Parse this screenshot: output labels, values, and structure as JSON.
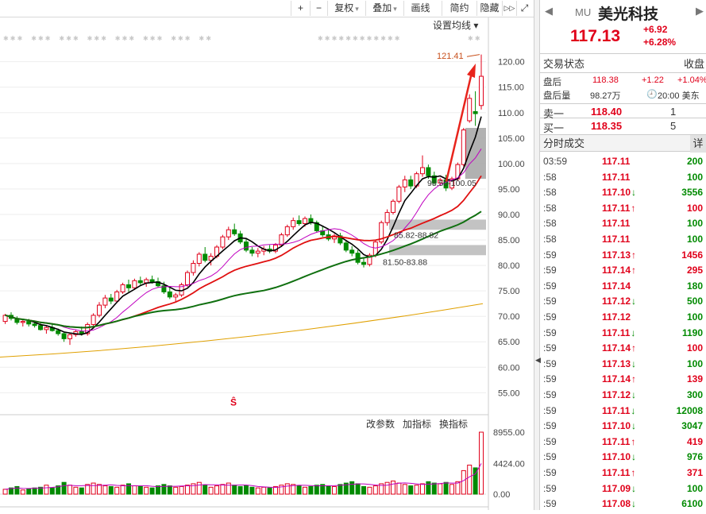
{
  "toolbar": {
    "plus": "+",
    "minus": "−",
    "fq": "复权",
    "overlay": "叠加",
    "draw": "画线",
    "compact": "简约",
    "hide": "隐藏",
    "next": "▷▷",
    "fullscreen": "⤢",
    "ma_setting": "设置均线 ▾"
  },
  "quote": {
    "symbol": "MU",
    "name": "美光科技",
    "price": "117.13",
    "change": "+6.92",
    "change_pct": "+6.28%"
  },
  "status": {
    "title": "交易状态",
    "right": "收盘"
  },
  "after": {
    "label": "盘后",
    "price": "118.38",
    "chg": "+1.22",
    "pct": "+1.04%",
    "vol_label": "盘后量",
    "vol": "98.27万",
    "time": "20:00 美东"
  },
  "book": [
    {
      "label": "卖一",
      "price": "118.40",
      "qty": "1"
    },
    {
      "label": "买一",
      "price": "118.35",
      "qty": "5"
    }
  ],
  "trades_title": "分时成交",
  "trades_more": "详",
  "trades": [
    {
      "t": "03:59",
      "p": "117.11",
      "d": "",
      "v": "200"
    },
    {
      "t": ":58",
      "p": "117.11",
      "d": "",
      "v": "100"
    },
    {
      "t": ":58",
      "p": "117.10",
      "d": "down",
      "v": "3556"
    },
    {
      "t": ":58",
      "p": "117.11",
      "d": "up",
      "v": "100"
    },
    {
      "t": ":58",
      "p": "117.11",
      "d": "",
      "v": "100"
    },
    {
      "t": ":58",
      "p": "117.11",
      "d": "",
      "v": "100"
    },
    {
      "t": ":59",
      "p": "117.13",
      "d": "up",
      "v": "1456"
    },
    {
      "t": ":59",
      "p": "117.14",
      "d": "up",
      "v": "295"
    },
    {
      "t": ":59",
      "p": "117.14",
      "d": "",
      "v": "180"
    },
    {
      "t": ":59",
      "p": "117.12",
      "d": "down",
      "v": "500"
    },
    {
      "t": ":59",
      "p": "117.12",
      "d": "",
      "v": "100"
    },
    {
      "t": ":59",
      "p": "117.11",
      "d": "down",
      "v": "1190"
    },
    {
      "t": ":59",
      "p": "117.14",
      "d": "up",
      "v": "100"
    },
    {
      "t": ":59",
      "p": "117.13",
      "d": "down",
      "v": "100"
    },
    {
      "t": ":59",
      "p": "117.14",
      "d": "up",
      "v": "139"
    },
    {
      "t": ":59",
      "p": "117.12",
      "d": "down",
      "v": "300"
    },
    {
      "t": ":59",
      "p": "117.11",
      "d": "down",
      "v": "12008"
    },
    {
      "t": ":59",
      "p": "117.10",
      "d": "down",
      "v": "3047"
    },
    {
      "t": ":59",
      "p": "117.11",
      "d": "up",
      "v": "419"
    },
    {
      "t": ":59",
      "p": "117.10",
      "d": "down",
      "v": "976"
    },
    {
      "t": ":59",
      "p": "117.11",
      "d": "up",
      "v": "371"
    },
    {
      "t": ":59",
      "p": "117.09",
      "d": "down",
      "v": "100"
    },
    {
      "t": ":59",
      "p": "117.08",
      "d": "down",
      "v": "6100"
    }
  ],
  "colors": {
    "up": "#e0001a",
    "down": "#008a00",
    "ma5": "#000000",
    "ma10": "#c000c0",
    "ma20": "#e01010",
    "ma60": "#107010",
    "ma250": "#e0a000",
    "arrow": "#e8241c",
    "band": "#b8b8b8"
  },
  "chart_data": {
    "type": "candlestick",
    "ylim": [
      51,
      124
    ],
    "y_ticks": [
      55,
      60,
      65,
      70,
      75,
      80,
      85,
      90,
      95,
      100,
      105,
      110,
      115,
      120
    ],
    "max_label": "121.41",
    "annotations": {
      "upper": "98.50-100.05",
      "mid": "85.82-88.82",
      "lower": "81.50-83.88"
    },
    "bands": [
      [
        87,
        89
      ],
      [
        82,
        84
      ]
    ],
    "gap_boxes": [
      [
        97,
        107
      ]
    ],
    "bars": [
      [
        69,
        70.5,
        68.5,
        70.2
      ],
      [
        70.2,
        70.8,
        69.2,
        69.6
      ],
      [
        69.6,
        70,
        68.4,
        68.8
      ],
      [
        68.8,
        69.4,
        68,
        69
      ],
      [
        69,
        69.5,
        68,
        68.5
      ],
      [
        68.5,
        69,
        67.8,
        68.2
      ],
      [
        68.2,
        68.6,
        67.2,
        67.4
      ],
      [
        67.4,
        68.2,
        66.6,
        67.8
      ],
      [
        67.8,
        68.4,
        67,
        67.2
      ],
      [
        67.2,
        67.6,
        66.2,
        66.6
      ],
      [
        66.6,
        67,
        65,
        65.6
      ],
      [
        65.6,
        66.8,
        64.4,
        66.4
      ],
      [
        66.4,
        67.4,
        66,
        67
      ],
      [
        67,
        68,
        66.2,
        66.6
      ],
      [
        66.6,
        68.8,
        66.2,
        68.4
      ],
      [
        68.4,
        70.6,
        68,
        70.2
      ],
      [
        70.2,
        72.8,
        69.8,
        72.2
      ],
      [
        72.2,
        74.2,
        71.6,
        73.6
      ],
      [
        73.6,
        74.4,
        72.4,
        73
      ],
      [
        73,
        75.2,
        72.6,
        74.8
      ],
      [
        74.8,
        76.6,
        74.4,
        76.2
      ],
      [
        76.2,
        77.2,
        74.8,
        75.6
      ],
      [
        75.6,
        77.4,
        75.2,
        77
      ],
      [
        77,
        77.8,
        76.2,
        76.6
      ],
      [
        76.6,
        77.6,
        75.8,
        77.2
      ],
      [
        77.2,
        78,
        76.4,
        76.8
      ],
      [
        76.8,
        77.6,
        75.6,
        76
      ],
      [
        76,
        76.8,
        74.4,
        74.8
      ],
      [
        74.8,
        75.6,
        73.4,
        73.8
      ],
      [
        73.8,
        74.6,
        72.8,
        74.2
      ],
      [
        74.2,
        76.6,
        73.8,
        76.2
      ],
      [
        76.2,
        79,
        75.8,
        78.6
      ],
      [
        78.6,
        81,
        78,
        80.4
      ],
      [
        80.4,
        82.6,
        79.8,
        82.2
      ],
      [
        82.2,
        83.6,
        80.6,
        81
      ],
      [
        81,
        82.4,
        80,
        81.8
      ],
      [
        81.8,
        84,
        81.4,
        83.6
      ],
      [
        83.6,
        86,
        83.2,
        85.6
      ],
      [
        85.6,
        87.6,
        85,
        87
      ],
      [
        87,
        88.2,
        85.8,
        86.2
      ],
      [
        86.2,
        86.8,
        84.2,
        84.6
      ],
      [
        84.6,
        85.2,
        82.6,
        83
      ],
      [
        83,
        83.6,
        81.8,
        82.4
      ],
      [
        82.4,
        83.4,
        81.6,
        82.8
      ],
      [
        82.8,
        83.8,
        82,
        83.2
      ],
      [
        83.2,
        84,
        82.4,
        82.8
      ],
      [
        82.8,
        84.4,
        82.4,
        84
      ],
      [
        84,
        86.4,
        83.6,
        86
      ],
      [
        86,
        88,
        85.6,
        87.6
      ],
      [
        87.6,
        89.4,
        87,
        88.8
      ],
      [
        88.8,
        89.8,
        87.8,
        88.2
      ],
      [
        88.2,
        89.6,
        87.6,
        89.2
      ],
      [
        89.2,
        90,
        88,
        88.4
      ],
      [
        88.4,
        88.8,
        86.4,
        86.8
      ],
      [
        86.8,
        87.6,
        85.6,
        86
      ],
      [
        86,
        87,
        84.8,
        85.2
      ],
      [
        85.2,
        86.2,
        84.4,
        85.8
      ],
      [
        85.8,
        86.4,
        84,
        84.4
      ],
      [
        84.4,
        85,
        82.6,
        83
      ],
      [
        83,
        83.8,
        81.8,
        82.4
      ],
      [
        82.4,
        83,
        80.2,
        80.6
      ],
      [
        80.6,
        81.4,
        79.6,
        80.2
      ],
      [
        80.2,
        82.4,
        79.8,
        82
      ],
      [
        82,
        85,
        81.6,
        84.6
      ],
      [
        84.6,
        88.8,
        84.2,
        88.4
      ],
      [
        88.4,
        91,
        87.8,
        90.4
      ],
      [
        90.4,
        93,
        90,
        92.6
      ],
      [
        92.6,
        95.8,
        92.2,
        95.4
      ],
      [
        95.4,
        97.6,
        94.4,
        96.8
      ],
      [
        96.8,
        97.6,
        95,
        95.6
      ],
      [
        95.6,
        98.4,
        95.2,
        98
      ],
      [
        98,
        101.6,
        97.4,
        99.2
      ],
      [
        99.2,
        99.8,
        97,
        97.6
      ],
      [
        97.6,
        98.4,
        95.8,
        96.2
      ],
      [
        96.2,
        97.2,
        95.6,
        96.8
      ],
      [
        96.8,
        97.8,
        94.6,
        95.2
      ],
      [
        95.2,
        97.4,
        94.8,
        97
      ],
      [
        97,
        100.2,
        96.6,
        99.8
      ],
      [
        99.8,
        107,
        99.4,
        106.6
      ],
      [
        108.4,
        113.6,
        108,
        112.8
      ],
      [
        110.2,
        114.2,
        107.4,
        109.8
      ],
      [
        111.4,
        121.41,
        110.6,
        117.13
      ]
    ],
    "volume_ylim": [
      0,
      8955
    ],
    "volume_ticks": [
      "8955.00",
      "4424.00",
      "0.00"
    ],
    "volume": [
      700,
      900,
      1100,
      600,
      800,
      900,
      1000,
      1300,
      900,
      1200,
      1700,
      1300,
      1000,
      900,
      1400,
      1600,
      1400,
      1200,
      1100,
      1000,
      1300,
      1500,
      1200,
      1100,
      1000,
      900,
      1200,
      1400,
      1200,
      1000,
      1100,
      1300,
      1500,
      1700,
      1300,
      1000,
      1200,
      1400,
      1600,
      1300,
      1100,
      1200,
      1000,
      900,
      1000,
      900,
      1100,
      1300,
      1500,
      1400,
      1200,
      1000,
      1100,
      1300,
      1400,
      1200,
      1100,
      1400,
      1600,
      1800,
      1500,
      1100,
      1000,
      1200,
      1500,
      1700,
      1900,
      1600,
      1400,
      1200,
      1300,
      1500,
      1800,
      1600,
      1500,
      1700,
      1400,
      1800,
      3400,
      4200,
      3800,
      8955
    ],
    "indicator_bar": "改参数   加指标   换指标"
  }
}
